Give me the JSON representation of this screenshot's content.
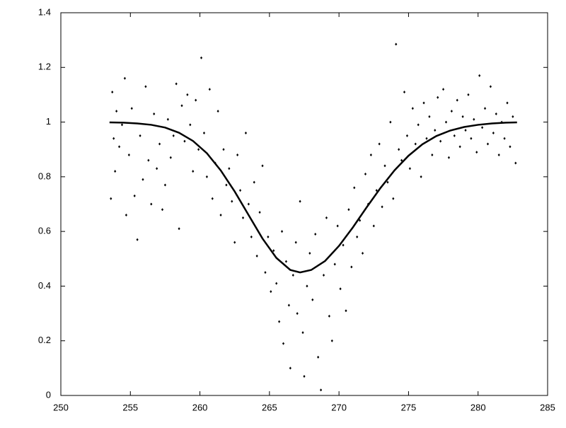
{
  "chart_data": {
    "type": "scatter",
    "xlim": [
      250,
      285
    ],
    "xticks": [
      250,
      255,
      260,
      265,
      270,
      275,
      280,
      285
    ],
    "ylim": [
      0,
      1.4
    ],
    "yticks": [
      0,
      0.2,
      0.4,
      0.6,
      0.8,
      1,
      1.2,
      1.4
    ],
    "series": [
      {
        "type": "scatter",
        "color": "#000000",
        "x": [
          253.6,
          253.7,
          253.8,
          253.9,
          254.0,
          254.2,
          254.4,
          254.6,
          254.7,
          254.9,
          255.1,
          255.3,
          255.5,
          255.7,
          255.9,
          256.1,
          256.3,
          256.5,
          256.7,
          256.9,
          257.1,
          257.3,
          257.5,
          257.7,
          257.9,
          258.1,
          258.3,
          258.5,
          258.7,
          258.9,
          259.1,
          259.3,
          259.5,
          259.7,
          259.9,
          260.1,
          260.3,
          260.5,
          260.7,
          260.9,
          261.1,
          261.3,
          261.5,
          261.7,
          261.9,
          262.1,
          262.3,
          262.5,
          262.7,
          262.9,
          263.1,
          263.3,
          263.5,
          263.7,
          263.9,
          264.1,
          264.3,
          264.5,
          264.7,
          264.9,
          265.1,
          265.3,
          265.5,
          265.7,
          265.9,
          266.0,
          266.2,
          266.4,
          266.5,
          266.7,
          266.9,
          267.0,
          267.2,
          267.4,
          267.5,
          267.7,
          267.9,
          268.1,
          268.3,
          268.5,
          268.7,
          268.9,
          269.1,
          269.3,
          269.5,
          269.7,
          269.9,
          270.1,
          270.3,
          270.5,
          270.7,
          270.9,
          271.1,
          271.3,
          271.5,
          271.7,
          271.9,
          272.1,
          272.3,
          272.5,
          272.7,
          272.9,
          273.1,
          273.3,
          273.5,
          273.7,
          273.9,
          274.1,
          274.3,
          274.5,
          274.7,
          274.9,
          275.1,
          275.3,
          275.5,
          275.7,
          275.9,
          276.1,
          276.3,
          276.5,
          276.7,
          276.9,
          277.1,
          277.3,
          277.5,
          277.7,
          277.9,
          278.1,
          278.3,
          278.5,
          278.7,
          278.9,
          279.1,
          279.3,
          279.5,
          279.7,
          279.9,
          280.1,
          280.3,
          280.5,
          280.7,
          280.9,
          281.1,
          281.3,
          281.5,
          281.7,
          281.9,
          282.1,
          282.3,
          282.5,
          282.7
        ],
        "values": [
          0.72,
          1.11,
          0.94,
          0.82,
          1.04,
          0.91,
          0.99,
          1.16,
          0.66,
          0.88,
          1.05,
          0.73,
          0.57,
          0.95,
          0.79,
          1.13,
          0.86,
          0.7,
          1.03,
          0.83,
          0.92,
          0.68,
          0.77,
          1.01,
          0.87,
          0.95,
          1.14,
          0.61,
          1.06,
          0.93,
          1.1,
          0.99,
          0.82,
          1.08,
          0.9,
          1.235,
          0.96,
          0.8,
          1.12,
          0.72,
          0.85,
          1.04,
          0.66,
          0.9,
          0.77,
          0.83,
          0.71,
          0.56,
          0.88,
          0.75,
          0.65,
          0.96,
          0.7,
          0.58,
          0.78,
          0.51,
          0.67,
          0.84,
          0.45,
          0.58,
          0.38,
          0.53,
          0.41,
          0.27,
          0.6,
          0.19,
          0.49,
          0.33,
          0.1,
          0.44,
          0.56,
          0.3,
          0.71,
          0.23,
          0.07,
          0.4,
          0.52,
          0.35,
          0.59,
          0.14,
          0.02,
          0.44,
          0.65,
          0.29,
          0.2,
          0.48,
          0.62,
          0.39,
          0.55,
          0.31,
          0.68,
          0.47,
          0.76,
          0.58,
          0.64,
          0.52,
          0.81,
          0.7,
          0.88,
          0.62,
          0.75,
          0.92,
          0.69,
          0.84,
          0.78,
          1.0,
          0.72,
          1.285,
          0.9,
          0.86,
          1.11,
          0.95,
          0.83,
          1.05,
          0.92,
          0.99,
          0.8,
          1.07,
          0.94,
          1.02,
          0.88,
          0.97,
          1.09,
          0.93,
          1.12,
          1.0,
          0.87,
          1.04,
          0.95,
          1.08,
          0.91,
          1.02,
          0.97,
          1.1,
          0.94,
          1.01,
          0.89,
          1.17,
          0.98,
          1.05,
          0.92,
          1.13,
          0.96,
          1.03,
          0.88,
          1.0,
          0.94,
          1.07,
          0.91,
          1.02,
          0.85
        ]
      },
      {
        "type": "line",
        "color": "#000000",
        "x": [
          253.5,
          254.5,
          255.5,
          256.5,
          257.5,
          258.5,
          259.5,
          260.5,
          261.5,
          262.5,
          263.5,
          264.5,
          265.5,
          266.5,
          267.2,
          268,
          269,
          270,
          271,
          272,
          273,
          274,
          275,
          276,
          277,
          278,
          279,
          280,
          281,
          282,
          282.8
        ],
        "values": [
          0.999,
          0.998,
          0.995,
          0.99,
          0.98,
          0.961,
          0.931,
          0.886,
          0.823,
          0.746,
          0.66,
          0.574,
          0.503,
          0.459,
          0.45,
          0.459,
          0.492,
          0.547,
          0.615,
          0.689,
          0.76,
          0.824,
          0.877,
          0.919,
          0.949,
          0.969,
          0.982,
          0.99,
          0.995,
          0.998,
          0.999
        ]
      }
    ]
  }
}
